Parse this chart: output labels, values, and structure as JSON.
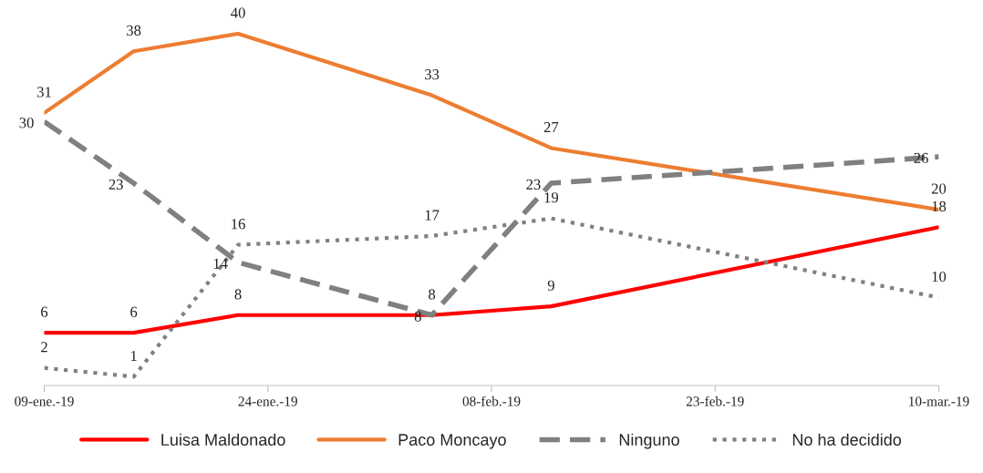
{
  "chart_data": {
    "type": "line",
    "x": [
      "2019-01-09",
      "2019-01-15",
      "2019-01-22",
      "2019-02-04",
      "2019-02-12",
      "2019-03-10"
    ],
    "xlim": [
      "2019-01-09",
      "2019-03-10"
    ],
    "xticks": [
      {
        "value": "2019-01-09",
        "label": "09-ene.-19"
      },
      {
        "value": "2019-01-24",
        "label": "24-ene.-19"
      },
      {
        "value": "2019-02-08",
        "label": "08-feb.-19"
      },
      {
        "value": "2019-02-23",
        "label": "23-feb.-19"
      },
      {
        "value": "2019-03-10",
        "label": "10-mar.-19"
      }
    ],
    "series": [
      {
        "name": "Luisa Maldonado",
        "color": "#ff0000",
        "line_style": "solid",
        "values": [
          6,
          6,
          8,
          8,
          9,
          18
        ]
      },
      {
        "name": "Paco Moncayo",
        "color": "#ed7d31",
        "line_style": "solid",
        "values": [
          31,
          38,
          40,
          33,
          27,
          20
        ]
      },
      {
        "name": "Ninguno",
        "color": "#808080",
        "line_style": "dashed",
        "values": [
          30,
          23,
          14,
          8,
          23,
          26
        ]
      },
      {
        "name": "No ha decidido",
        "color": "#808080",
        "line_style": "dotted",
        "values": [
          2,
          1,
          16,
          17,
          19,
          10
        ]
      }
    ],
    "data_labels": true,
    "grid": false,
    "legend": "bottom",
    "marker": "none"
  }
}
